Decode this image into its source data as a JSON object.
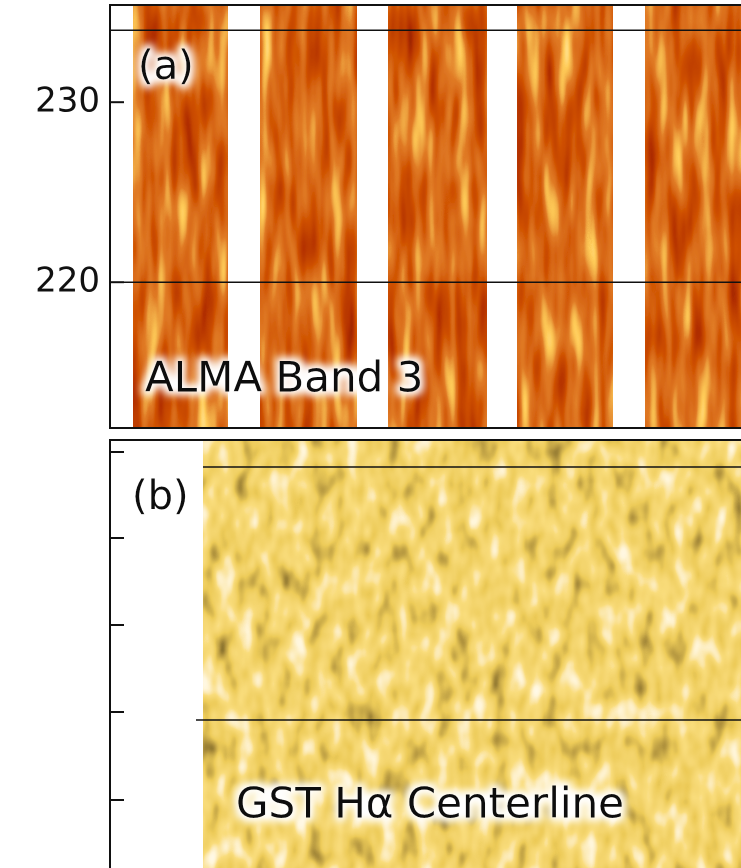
{
  "chart_data": [
    {
      "type": "heatmap",
      "label": "(a)",
      "annotation": "ALMA Band 3",
      "ylim": [
        211.9,
        235.4
      ],
      "yticks": [
        220,
        230
      ],
      "hlines": [
        234,
        220
      ]
    },
    {
      "type": "heatmap",
      "label": "(b)",
      "annotation": "GST Hα Centerline"
    }
  ]
}
